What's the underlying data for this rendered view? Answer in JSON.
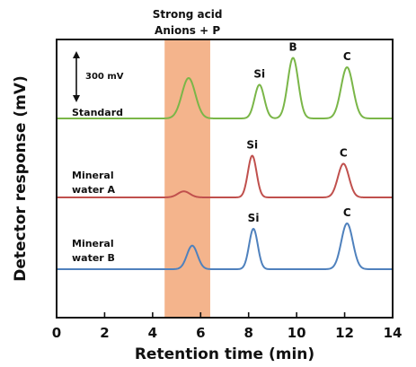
{
  "chart_data": {
    "type": "line",
    "xlabel": "Retention time (min)",
    "ylabel": "Detector response (mV)",
    "xlim": [
      0,
      14
    ],
    "x_ticks": [
      "0",
      "2",
      "4",
      "6",
      "8",
      "10",
      "12",
      "14"
    ],
    "grid": false,
    "shaded_region": {
      "x_start": 4.5,
      "x_end": 6.4,
      "label_line1": "Strong acid",
      "label_line2": "Anions + P",
      "color": "#f4b48c",
      "label_color": "#e05c5c"
    },
    "scale_bar": {
      "label": "300 mV",
      "value": 300
    },
    "series": [
      {
        "name": "Standard",
        "color": "#7ab648",
        "baseline": 0,
        "peaks": [
          {
            "x": 5.5,
            "height": 300,
            "width": 0.28,
            "label": ""
          },
          {
            "x": 8.45,
            "height": 250,
            "width": 0.2,
            "label": "Si"
          },
          {
            "x": 9.85,
            "height": 450,
            "width": 0.22,
            "label": "B"
          },
          {
            "x": 12.1,
            "height": 380,
            "width": 0.25,
            "label": "C"
          }
        ]
      },
      {
        "name": "Mineral water A",
        "name_line1": "Mineral",
        "name_line2": "water A",
        "color": "#c0504d",
        "baseline": 0,
        "peaks": [
          {
            "x": 5.3,
            "height": 45,
            "width": 0.25,
            "label": ""
          },
          {
            "x": 8.15,
            "height": 310,
            "width": 0.18,
            "label": "Si"
          },
          {
            "x": 11.95,
            "height": 250,
            "width": 0.23,
            "label": "C"
          }
        ]
      },
      {
        "name": "Mineral water B",
        "name_line1": "Mineral",
        "name_line2": "water B",
        "color": "#4f81bd",
        "baseline": 0,
        "peaks": [
          {
            "x": 5.65,
            "height": 175,
            "width": 0.22,
            "label": ""
          },
          {
            "x": 8.2,
            "height": 300,
            "width": 0.18,
            "label": "Si"
          },
          {
            "x": 12.1,
            "height": 340,
            "width": 0.24,
            "label": "C"
          }
        ]
      }
    ]
  }
}
